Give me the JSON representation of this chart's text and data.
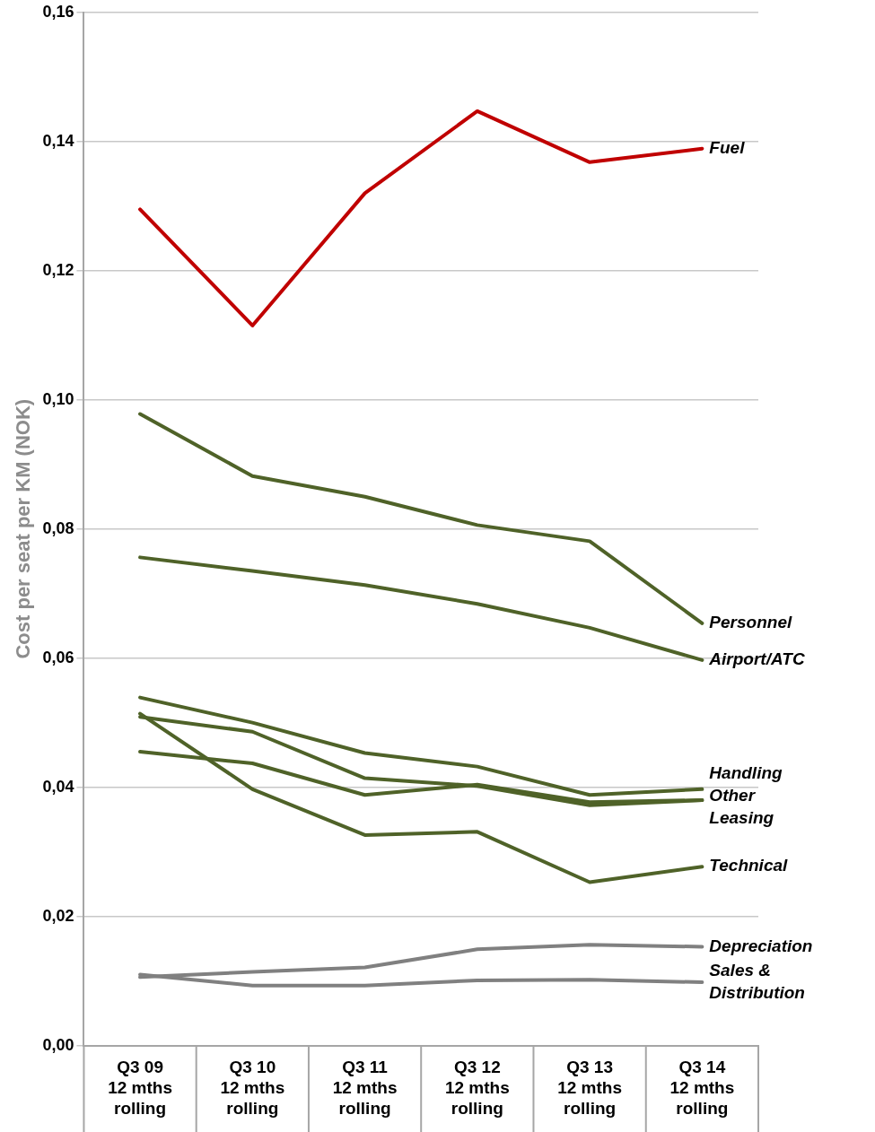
{
  "chart_data": {
    "type": "line",
    "ylabel": "Cost per seat per KM (NOK)",
    "categories": [
      "Q3 09\n12 mths\nrolling",
      "Q3 10\n12 mths\nrolling",
      "Q3 11\n12 mths\nrolling",
      "Q3 12\n12 mths\nrolling",
      "Q3 13\n12 mths\nrolling",
      "Q3 14\n12 mths\nrolling"
    ],
    "series": [
      {
        "name": "Fuel",
        "color": "#c00000",
        "values": [
          0.1295,
          0.1115,
          0.132,
          0.1447,
          0.1368,
          0.1389
        ]
      },
      {
        "name": "Personnel",
        "color": "#4f6228",
        "values": [
          0.0978,
          0.0882,
          0.085,
          0.0806,
          0.0781,
          0.0654
        ]
      },
      {
        "name": "Airport/ATC",
        "color": "#4f6228",
        "values": [
          0.0756,
          0.0735,
          0.0713,
          0.0684,
          0.0647,
          0.0597
        ]
      },
      {
        "name": "Handling",
        "color": "#4f6228",
        "values": [
          0.0539,
          0.05,
          0.0453,
          0.0432,
          0.0388,
          0.0397
        ]
      },
      {
        "name": "Other",
        "color": "#4f6228",
        "values": [
          0.0509,
          0.0486,
          0.0414,
          0.0402,
          0.0372,
          0.038
        ]
      },
      {
        "name": "Leasing",
        "color": "#4f6228",
        "values": [
          0.0455,
          0.0437,
          0.0388,
          0.0404,
          0.0377,
          0.038
        ]
      },
      {
        "name": "Technical",
        "color": "#4f6228",
        "values": [
          0.0514,
          0.0397,
          0.0326,
          0.0331,
          0.0253,
          0.0277
        ]
      },
      {
        "name": "Depreciation",
        "color": "#808080",
        "values": [
          0.0106,
          0.0114,
          0.0121,
          0.0149,
          0.0156,
          0.0153
        ]
      },
      {
        "name": "Sales & Distribution",
        "color": "#808080",
        "values": [
          0.011,
          0.0093,
          0.0093,
          0.0101,
          0.0102,
          0.0098
        ]
      }
    ],
    "ylim": [
      0,
      0.16
    ],
    "yticks": [
      {
        "value": 0,
        "label": "0,00"
      },
      {
        "value": 0.02,
        "label": "0,02"
      },
      {
        "value": 0.04,
        "label": "0,04"
      },
      {
        "value": 0.06,
        "label": "0,06"
      },
      {
        "value": 0.08,
        "label": "0,08"
      },
      {
        "value": 0.1,
        "label": "0,10"
      },
      {
        "value": 0.12,
        "label": "0,12"
      },
      {
        "value": 0.14,
        "label": "0,14"
      },
      {
        "value": 0.16,
        "label": "0,16"
      }
    ],
    "grid": "y",
    "legend": false,
    "marker": "none",
    "line_style": "solid"
  }
}
